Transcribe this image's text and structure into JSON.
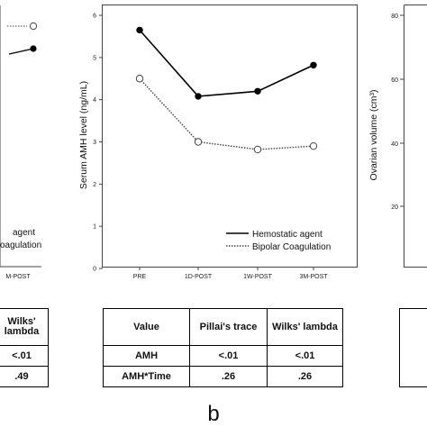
{
  "colors": {
    "hemostatic": "#000000",
    "bipolar": "#444444",
    "frame": "#444444"
  },
  "left_fragment": {
    "legend_labels": [
      "agent",
      "oagulation"
    ],
    "x_tick_label": "M-POST",
    "table": {
      "header": [
        "Wilks'",
        "lambda"
      ],
      "rows": [
        "<.01",
        ".49"
      ]
    }
  },
  "right_fragment": {
    "ylabel": "Ovarian volume (cm³)",
    "y_ticks": [
      "80",
      "60",
      "40",
      "20"
    ]
  },
  "chart_data": {
    "type": "line",
    "title": "",
    "xlabel": "",
    "ylabel": "Serum AMH level (ng/mL)",
    "categories": [
      "PRE",
      "1D-POST",
      "1W-POST",
      "3M-POST"
    ],
    "ylim": [
      0,
      6
    ],
    "y_ticks": [
      "0",
      "1",
      "2",
      "3",
      "4",
      "5",
      "6"
    ],
    "grid": false,
    "legend_position": "bottom-right",
    "series": [
      {
        "name": "Hemostatic agent",
        "values": [
          5.65,
          4.08,
          4.2,
          4.82
        ],
        "line": "solid",
        "marker": "filled-circle"
      },
      {
        "name": "Bipolar Coagulation",
        "values": [
          4.5,
          3.0,
          2.82,
          2.9
        ],
        "line": "dotted",
        "marker": "open-circle"
      }
    ]
  },
  "table": {
    "headers": [
      "Value",
      "Pillai's trace",
      "Wilks' lambda"
    ],
    "rows": [
      [
        "AMH",
        "<.01",
        "<.01"
      ],
      [
        "AMH*Time",
        ".26",
        ".26"
      ]
    ]
  },
  "panel_label": "b"
}
